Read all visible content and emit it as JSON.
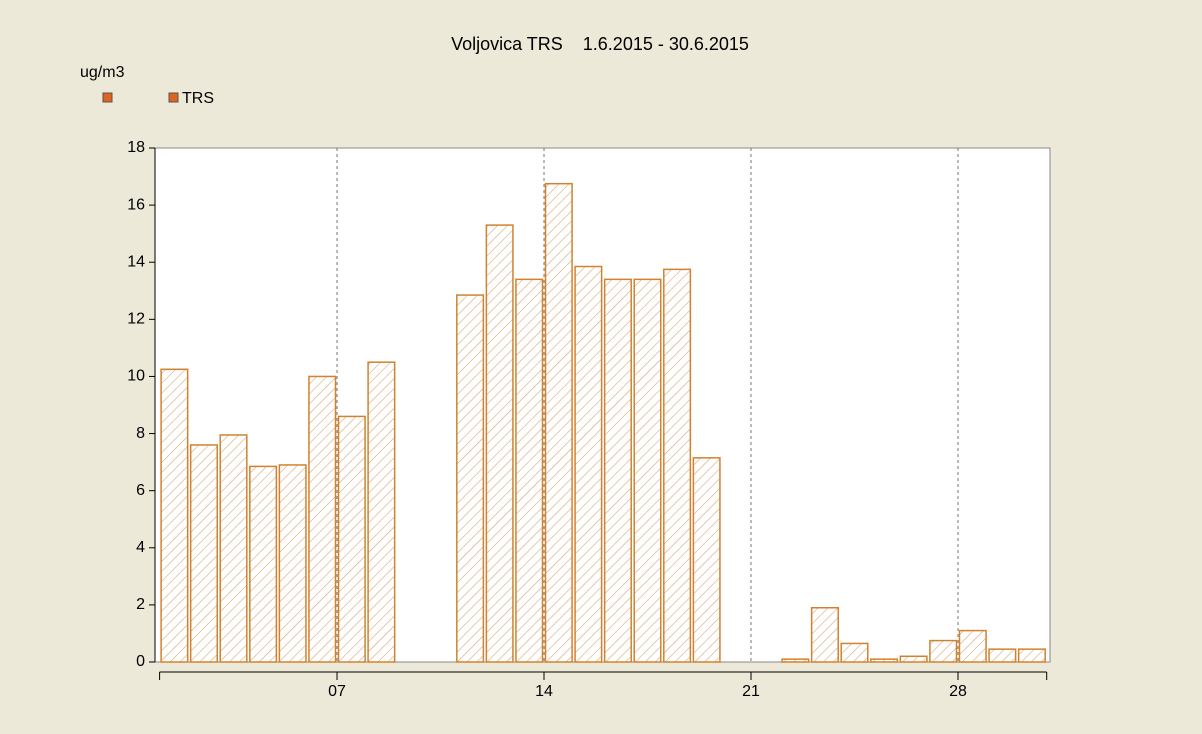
{
  "chart_data": {
    "type": "bar",
    "title": "Voljovica TRS    1.6.2015 - 30.6.2015",
    "y_label": "ug/m3",
    "categories": [
      null,
      null,
      null,
      null,
      null,
      null,
      "07",
      null,
      null,
      null,
      null,
      null,
      null,
      "14",
      null,
      null,
      null,
      null,
      null,
      null,
      "21",
      null,
      null,
      null,
      null,
      null,
      null,
      "28",
      null,
      null
    ],
    "series": [
      {
        "name": "TRS",
        "color": "#d2822e",
        "values": [
          10.25,
          7.6,
          7.95,
          6.85,
          6.9,
          10.0,
          8.6,
          10.5,
          null,
          null,
          12.85,
          15.3,
          13.4,
          16.75,
          13.85,
          13.4,
          13.4,
          13.75,
          7.15,
          null,
          null,
          0.1,
          1.9,
          0.65,
          0.1,
          0.2,
          0.75,
          1.1,
          0.45,
          0.45
        ]
      }
    ],
    "ylim": [
      0,
      18
    ],
    "yticks": [
      0,
      2,
      4,
      6,
      8,
      10,
      12,
      14,
      16,
      18
    ],
    "grid": true
  }
}
